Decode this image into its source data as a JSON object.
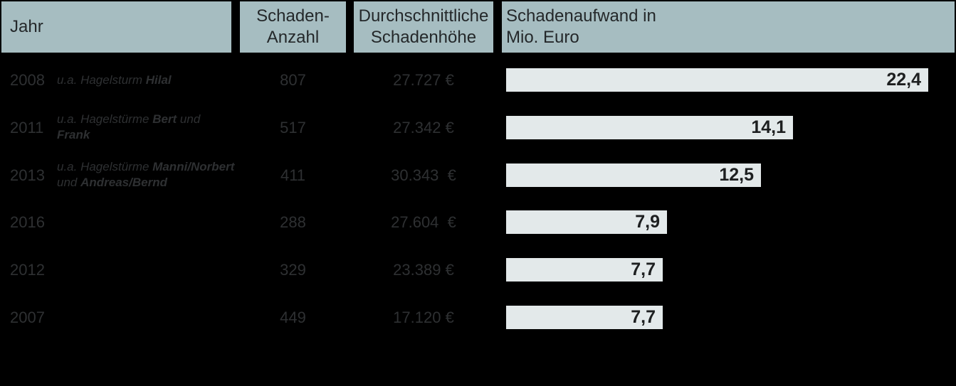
{
  "header": {
    "year": "Jahr",
    "count_line1": "Schaden-",
    "count_line2": "Anzahl",
    "avg_line1": "Durchschnittliche",
    "avg_line2": "Schadenhöhe",
    "total_line1": "Schadenaufwand in",
    "total_line2": "Mio. Euro"
  },
  "colors": {
    "page_bg": "#000000",
    "header_bg": "#a6bdc1",
    "header_text": "#24282a",
    "row_text": "#2e3032",
    "bar_fill": "#e3e9ea",
    "bar_label": "#1d1f20"
  },
  "rows": [
    {
      "year": "2008",
      "annotation_lines": [
        [
          {
            "t": "u.a. Hagelsturm ",
            "b": false
          },
          {
            "t": "Hilal",
            "b": true
          }
        ]
      ],
      "count": "807",
      "avg": "27.727 €",
      "value": 22.4,
      "value_label": "22,4"
    },
    {
      "year": "2011",
      "annotation_lines": [
        [
          {
            "t": "u.a. Hagelstürme ",
            "b": false
          },
          {
            "t": "Bert",
            "b": true
          },
          {
            "t": " und",
            "b": false
          }
        ],
        [
          {
            "t": "Frank",
            "b": true
          }
        ]
      ],
      "count": "517",
      "avg": "27.342 €",
      "value": 14.1,
      "value_label": "14,1"
    },
    {
      "year": "2013",
      "annotation_lines": [
        [
          {
            "t": "u.a. Hagelstürme ",
            "b": false
          },
          {
            "t": "Manni/Norbert",
            "b": true
          }
        ],
        [
          {
            "t": "und ",
            "b": false
          },
          {
            "t": "Andreas/Bernd",
            "b": true
          }
        ]
      ],
      "count": "411",
      "avg": "30.343  €",
      "value": 12.5,
      "value_label": "12,5"
    },
    {
      "year": "2016",
      "annotation_lines": [],
      "count": "288",
      "avg": "27.604  €",
      "value": 7.9,
      "value_label": "7,9"
    },
    {
      "year": "2012",
      "annotation_lines": [],
      "count": "329",
      "avg": "23.389 €",
      "value": 7.7,
      "value_label": "7,7"
    },
    {
      "year": "2007",
      "annotation_lines": [],
      "count": "449",
      "avg": "17.120 €",
      "value": 7.7,
      "value_label": "7,7"
    }
  ],
  "chart_data": {
    "type": "bar",
    "orientation": "horizontal",
    "title": "Schadenaufwand in Mio. Euro",
    "categories": [
      "2008",
      "2011",
      "2013",
      "2016",
      "2012",
      "2007"
    ],
    "values": [
      22.4,
      14.1,
      12.5,
      7.9,
      7.7,
      7.7
    ],
    "value_labels": [
      "22,4",
      "14,1",
      "12,5",
      "7,9",
      "7,7",
      "7,7"
    ],
    "annotations": [
      "u.a. Hagelsturm Hilal",
      "u.a. Hagelstürme Bert und Frank",
      "u.a. Hagelstürme Manni/Norbert und Andreas/Bernd",
      "",
      "",
      ""
    ],
    "claim_counts": [
      807,
      517,
      411,
      288,
      329,
      449
    ],
    "avg_claim_amounts": [
      "27.727 €",
      "27.342 €",
      "30.343 €",
      "27.604 €",
      "23.389 €",
      "17.120 €"
    ],
    "columns": [
      "Jahr",
      "Schaden-Anzahl",
      "Durchschnittliche Schadenhöhe",
      "Schadenaufwand in Mio. Euro"
    ],
    "xlim": [
      0,
      22.4
    ],
    "grid": false,
    "legend": "none",
    "bar_color": "#e3e9ea",
    "value_label_position": "inside-end"
  }
}
